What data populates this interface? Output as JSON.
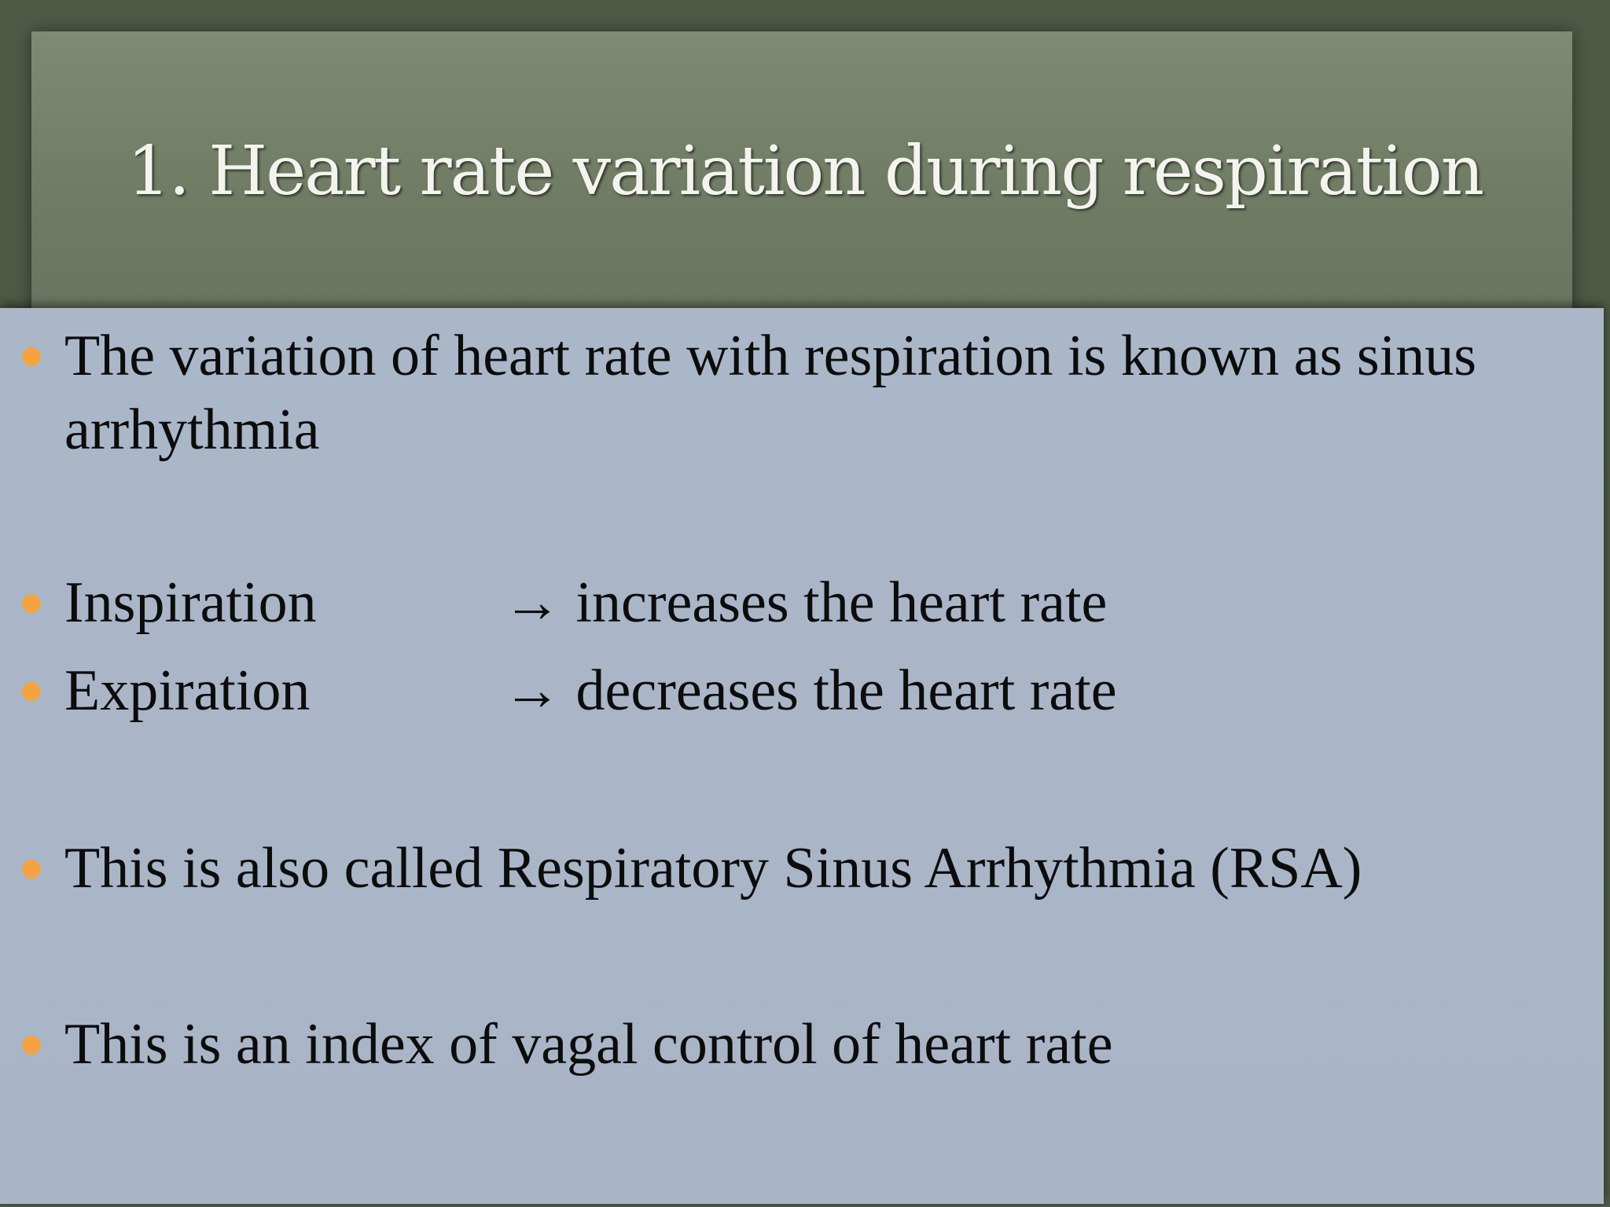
{
  "slide": {
    "title": "1. Heart rate variation during respiration",
    "bullets": [
      {
        "text": "The variation of heart rate with respiration is known as sinus arrhythmia"
      },
      {
        "term": "Inspiration",
        "effect": "→ increases the heart rate"
      },
      {
        "term": "Expiration",
        "effect": "→ decreases the heart rate"
      },
      {
        "text": "This is also called Respiratory Sinus Arrhythmia (RSA)"
      },
      {
        "text": "This is an index of vagal control of heart rate"
      }
    ]
  }
}
